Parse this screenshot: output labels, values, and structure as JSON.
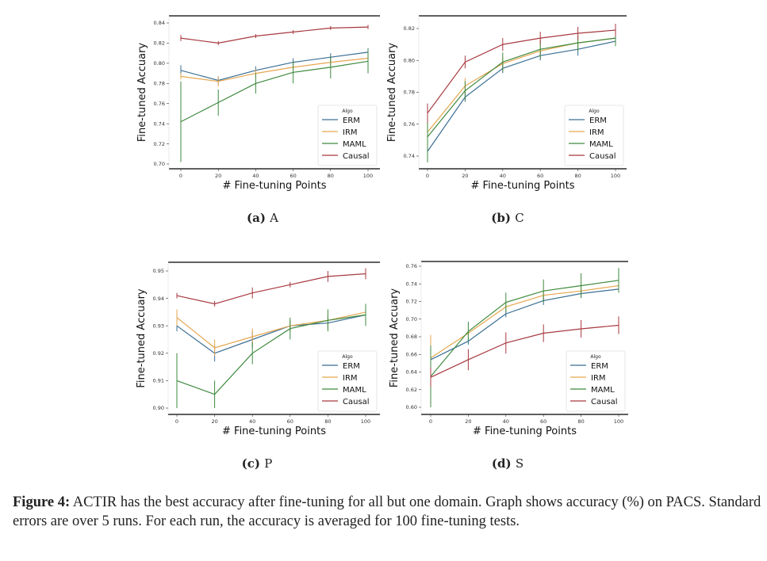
{
  "caption": {
    "label": "Figure 4:",
    "text": " ACTIR has the best accuracy after fine-tuning for all but one domain. Graph shows accuracy (%) on PACS. Standard errors are over 5 runs. For each run, the accuracy is averaged for 100 fine-tuning tests."
  },
  "legend_colors": {
    "ERM": "#3a6f93",
    "IRM": "#e6a64f",
    "MAML": "#3f8a3f",
    "Causal": "#a8393f"
  },
  "chart_data": [
    {
      "type": "line",
      "panel": "(a)",
      "subtitle": "A",
      "xlabel": "# Fine-tuning Points",
      "ylabel": "Fine-tuned Accuary",
      "x": [
        0,
        20,
        40,
        60,
        80,
        100
      ],
      "xticks": [
        "0",
        "20",
        "40",
        "60",
        "80",
        "100"
      ],
      "ylim": [
        0.695,
        0.845
      ],
      "yticks": [
        "0.70",
        "0.72",
        "0.74",
        "0.76",
        "0.78",
        "0.80",
        "0.82",
        "0.84"
      ],
      "grid": false,
      "legend": {
        "title": "Algo",
        "position": "bottom-right"
      },
      "series": [
        {
          "name": "ERM",
          "values": [
            0.793,
            0.783,
            0.793,
            0.801,
            0.806,
            0.811
          ],
          "err": [
            0.005,
            0.004,
            0.004,
            0.004,
            0.004,
            0.004
          ]
        },
        {
          "name": "IRM",
          "values": [
            0.787,
            0.782,
            0.79,
            0.796,
            0.801,
            0.805
          ],
          "err": [
            0.003,
            0.005,
            0.004,
            0.004,
            0.004,
            0.004
          ]
        },
        {
          "name": "MAML",
          "values": [
            0.742,
            0.761,
            0.78,
            0.791,
            0.796,
            0.802
          ],
          "err": [
            0.04,
            0.013,
            0.01,
            0.011,
            0.011,
            0.012
          ]
        },
        {
          "name": "Causal",
          "values": [
            0.825,
            0.82,
            0.827,
            0.831,
            0.835,
            0.836
          ],
          "err": [
            0.003,
            0.002,
            0.002,
            0.002,
            0.002,
            0.002
          ]
        }
      ]
    },
    {
      "type": "line",
      "panel": "(b)",
      "subtitle": "C",
      "xlabel": "# Fine-tuning Points",
      "ylabel": "Fine-tuned Accuary",
      "x": [
        0,
        20,
        40,
        60,
        80,
        100
      ],
      "xticks": [
        "0",
        "20",
        "40",
        "60",
        "80",
        "100"
      ],
      "ylim": [
        0.732,
        0.827
      ],
      "yticks": [
        "0.74",
        "0.76",
        "0.78",
        "0.80",
        "0.82"
      ],
      "grid": false,
      "legend": {
        "title": "Algo",
        "position": "bottom-right"
      },
      "series": [
        {
          "name": "ERM",
          "values": [
            0.743,
            0.777,
            0.795,
            0.803,
            0.807,
            0.812
          ],
          "err": [
            0.004,
            0.003,
            0.003,
            0.003,
            0.004,
            0.003
          ]
        },
        {
          "name": "IRM",
          "values": [
            0.755,
            0.784,
            0.798,
            0.806,
            0.811,
            0.814
          ],
          "err": [
            0.004,
            0.005,
            0.004,
            0.004,
            0.004,
            0.004
          ]
        },
        {
          "name": "MAML",
          "values": [
            0.752,
            0.781,
            0.799,
            0.807,
            0.811,
            0.814
          ],
          "err": [
            0.016,
            0.006,
            0.006,
            0.006,
            0.005,
            0.005
          ]
        },
        {
          "name": "Causal",
          "values": [
            0.767,
            0.799,
            0.81,
            0.814,
            0.817,
            0.819
          ],
          "err": [
            0.006,
            0.004,
            0.004,
            0.004,
            0.004,
            0.004
          ]
        }
      ]
    },
    {
      "type": "line",
      "panel": "(c)",
      "subtitle": "P",
      "xlabel": "# Fine-tuning Points",
      "ylabel": "Fine-tuned Accuary",
      "x": [
        0,
        20,
        40,
        60,
        80,
        100
      ],
      "xticks": [
        "0",
        "20",
        "40",
        "60",
        "80",
        "100"
      ],
      "ylim": [
        0.898,
        0.952
      ],
      "yticks": [
        "0.90",
        "0.91",
        "0.92",
        "0.93",
        "0.94",
        "0.95"
      ],
      "grid": false,
      "legend": {
        "title": "Algo",
        "position": "bottom-right"
      },
      "series": [
        {
          "name": "ERM",
          "values": [
            0.93,
            0.92,
            0.925,
            0.93,
            0.931,
            0.934
          ],
          "err": [
            0.002,
            0.003,
            0.003,
            0.002,
            0.002,
            0.002
          ]
        },
        {
          "name": "IRM",
          "values": [
            0.933,
            0.922,
            0.926,
            0.93,
            0.932,
            0.935
          ],
          "err": [
            0.003,
            0.003,
            0.003,
            0.002,
            0.002,
            0.002
          ]
        },
        {
          "name": "MAML",
          "values": [
            0.91,
            0.905,
            0.92,
            0.929,
            0.932,
            0.934
          ],
          "err": [
            0.01,
            0.005,
            0.004,
            0.004,
            0.004,
            0.004
          ]
        },
        {
          "name": "Causal",
          "values": [
            0.941,
            0.938,
            0.942,
            0.945,
            0.948,
            0.949
          ],
          "err": [
            0.001,
            0.001,
            0.002,
            0.001,
            0.002,
            0.002
          ]
        }
      ]
    },
    {
      "type": "line",
      "panel": "(d)",
      "subtitle": "S",
      "xlabel": "# Fine-tuning Points",
      "ylabel": "Fine-tuned Accuary",
      "x": [
        0,
        20,
        40,
        60,
        80,
        100
      ],
      "xticks": [
        "0",
        "20",
        "40",
        "60",
        "80",
        "100"
      ],
      "ylim": [
        0.595,
        0.765
      ],
      "yticks": [
        "0.60",
        "0.62",
        "0.64",
        "0.66",
        "0.68",
        "0.70",
        "0.72",
        "0.74",
        "0.76"
      ],
      "grid": false,
      "legend": {
        "title": "Algo",
        "position": "bottom-right"
      },
      "series": [
        {
          "name": "ERM",
          "values": [
            0.654,
            0.675,
            0.706,
            0.721,
            0.729,
            0.734
          ],
          "err": [
            0.003,
            0.004,
            0.004,
            0.005,
            0.005,
            0.004
          ]
        },
        {
          "name": "IRM",
          "values": [
            0.656,
            0.684,
            0.714,
            0.727,
            0.732,
            0.738
          ],
          "err": [
            0.026,
            0.004,
            0.004,
            0.005,
            0.005,
            0.004
          ]
        },
        {
          "name": "MAML",
          "values": [
            0.635,
            0.686,
            0.719,
            0.732,
            0.738,
            0.744
          ],
          "err": [
            0.035,
            0.011,
            0.011,
            0.013,
            0.014,
            0.014
          ]
        },
        {
          "name": "Causal",
          "values": [
            0.634,
            0.654,
            0.673,
            0.684,
            0.689,
            0.693
          ],
          "err": [
            0.011,
            0.012,
            0.012,
            0.01,
            0.01,
            0.01
          ]
        }
      ]
    }
  ]
}
